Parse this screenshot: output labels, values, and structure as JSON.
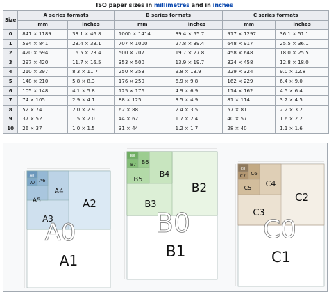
{
  "caption": {
    "prefix": "ISO paper sizes in ",
    "link1": "millimetres",
    "middle": " and in ",
    "link2": "inches"
  },
  "headers": {
    "size": "Size",
    "a_series": "A series formats",
    "b_series": "B series formats",
    "c_series": "C series formats",
    "mm": "mm",
    "inches": "inches"
  },
  "rows": [
    {
      "size": "0",
      "a_mm": "841 × 1189",
      "a_in": "33.1 × 46.8",
      "b_mm": "1000 × 1414",
      "b_in": "39.4 × 55.7",
      "c_mm": "917 × 1297",
      "c_in": "36.1 × 51.1"
    },
    {
      "size": "1",
      "a_mm": "594 × 841",
      "a_in": "23.4 × 33.1",
      "b_mm": "707 × 1000",
      "b_in": "27.8 × 39.4",
      "c_mm": "648 × 917",
      "c_in": "25.5 × 36.1"
    },
    {
      "size": "2",
      "a_mm": "420 × 594",
      "a_in": "16.5 × 23.4",
      "b_mm": "500 × 707",
      "b_in": "19.7 × 27.8",
      "c_mm": "458 × 648",
      "c_in": "18.0 × 25.5"
    },
    {
      "size": "3",
      "a_mm": "297 × 420",
      "a_in": "11.7 × 16.5",
      "b_mm": "353 × 500",
      "b_in": "13.9 × 19.7",
      "c_mm": "324 × 458",
      "c_in": "12.8 × 18.0"
    },
    {
      "size": "4",
      "a_mm": "210 × 297",
      "a_in": "8.3 × 11.7",
      "b_mm": "250 × 353",
      "b_in": "9.8 × 13.9",
      "c_mm": "229 × 324",
      "c_in": "9.0 × 12.8"
    },
    {
      "size": "5",
      "a_mm": "148 × 210",
      "a_in": "5.8 × 8.3",
      "b_mm": "176 × 250",
      "b_in": "6.9 × 9.8",
      "c_mm": "162 × 229",
      "c_in": "6.4 × 9.0"
    },
    {
      "size": "6",
      "a_mm": "105 × 148",
      "a_in": "4.1 × 5.8",
      "b_mm": "125 × 176",
      "b_in": "4.9 × 6.9",
      "c_mm": "114 × 162",
      "c_in": "4.5 × 6.4"
    },
    {
      "size": "7",
      "a_mm": "74 × 105",
      "a_in": "2.9 × 4.1",
      "b_mm": "88 × 125",
      "b_in": "3.5 × 4.9",
      "c_mm": "81 × 114",
      "c_in": "3.2 × 4.5"
    },
    {
      "size": "8",
      "a_mm": "52 × 74",
      "a_in": "2.0 × 2.9",
      "b_mm": "62 × 88",
      "b_in": "2.4 × 3.5",
      "c_mm": "57 × 81",
      "c_in": "2.2 × 3.2"
    },
    {
      "size": "9",
      "a_mm": "37 × 52",
      "a_in": "1.5 × 2.0",
      "b_mm": "44 × 62",
      "b_in": "1.7 × 2.4",
      "c_mm": "40 × 57",
      "c_in": "1.6 × 2.2"
    },
    {
      "size": "10",
      "a_mm": "26 × 37",
      "a_in": "1.0 × 1.5",
      "b_mm": "31 × 44",
      "b_in": "1.2 × 1.7",
      "c_mm": "28 × 40",
      "c_in": "1.1 × 1.6"
    }
  ],
  "diagram_a": {
    "big": "A0",
    "main": "A1",
    "labels": [
      "A2",
      "A3",
      "A4",
      "A5",
      "A6",
      "A7",
      "A8"
    ]
  },
  "diagram_b": {
    "big": "B0",
    "main": "B1",
    "labels": [
      "B2",
      "B3",
      "B4",
      "B5",
      "B6",
      "B7",
      "B8"
    ]
  },
  "diagram_c": {
    "big": "C0",
    "main": "C1",
    "labels": [
      "C2",
      "C3",
      "C4",
      "C5",
      "C6",
      "C7",
      "C8"
    ]
  },
  "colors": {
    "a_fill": "#dbe9f4",
    "b_fill": "#dcefd6",
    "c_fill": "#ece2d2",
    "border": "#a2a9b1",
    "header_bg": "#eaecf0",
    "link": "#0645ad"
  }
}
